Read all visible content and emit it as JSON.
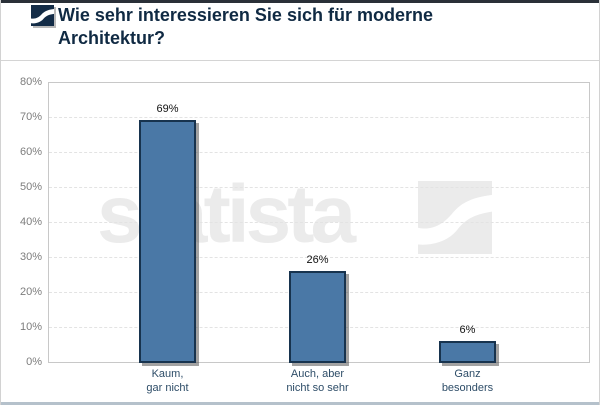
{
  "header": {
    "title": "Wie sehr interessieren Sie sich für moderne Architektur?"
  },
  "watermark": {
    "text": "statista",
    "logo": "statista-swoosh-icon",
    "color": "#ebebeb"
  },
  "colors": {
    "bar_fill": "#4a78a6",
    "bar_border": "#17334e",
    "title_text": "#102a43",
    "category_text": "#2e4d68",
    "ytick_text": "#7d7d7d",
    "gridline": "#e3e3e3",
    "logo_navy": "#132c47",
    "bottom_strip": "#b5c1cb"
  },
  "chart_data": {
    "type": "bar",
    "title": "Wie sehr interessieren Sie sich für moderne Architektur?",
    "categories": [
      [
        "Kaum,",
        "gar nicht"
      ],
      [
        "Auch, aber",
        "nicht so sehr"
      ],
      [
        "Ganz",
        "besonders"
      ]
    ],
    "values": [
      69,
      26,
      6
    ],
    "value_labels": [
      "69%",
      "26%",
      "6%"
    ],
    "xlabel": "",
    "ylabel": "",
    "ylim": [
      0,
      80
    ],
    "y_ticks": [
      "80%",
      "70%",
      "60%",
      "50%",
      "40%",
      "30%",
      "20%",
      "10%",
      "0%"
    ],
    "grid": "horizontal-dashed",
    "legend": "none"
  }
}
